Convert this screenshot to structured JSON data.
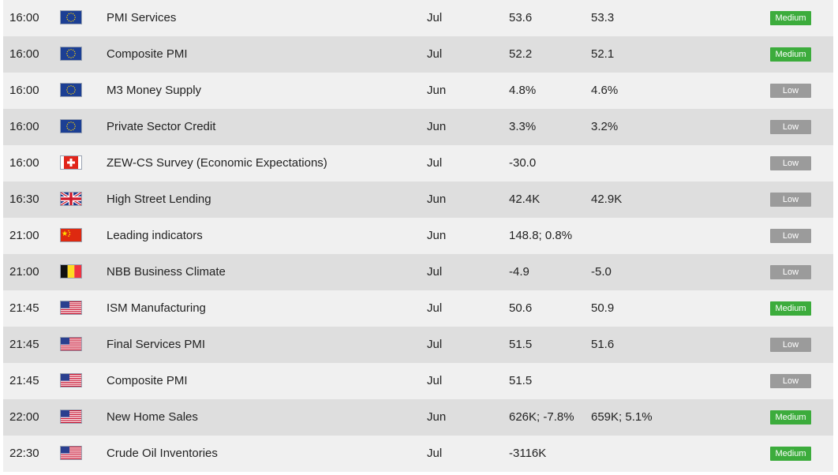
{
  "colors": {
    "row_odd": "#f0f0f0",
    "row_even": "#dedede",
    "medium": "#3cac3c",
    "low": "#9b9b9b"
  },
  "events": [
    {
      "time": "16:00",
      "flag": "eu-flag-icon",
      "event": "PMI Services",
      "period": "Jul",
      "actual": "53.6",
      "previous": "53.3",
      "importance": "Medium"
    },
    {
      "time": "16:00",
      "flag": "eu-flag-icon",
      "event": "Composite PMI",
      "period": "Jul",
      "actual": "52.2",
      "previous": "52.1",
      "importance": "Medium"
    },
    {
      "time": "16:00",
      "flag": "eu-flag-icon",
      "event": "M3 Money Supply",
      "period": "Jun",
      "actual": "4.8%",
      "previous": "4.6%",
      "importance": "Low"
    },
    {
      "time": "16:00",
      "flag": "eu-flag-icon",
      "event": "Private Sector Credit",
      "period": "Jun",
      "actual": "3.3%",
      "previous": "3.2%",
      "importance": "Low"
    },
    {
      "time": "16:00",
      "flag": "ch-flag-icon",
      "event": "ZEW-CS Survey (Economic Expectations)",
      "period": "Jul",
      "actual": "-30.0",
      "previous": "",
      "importance": "Low"
    },
    {
      "time": "16:30",
      "flag": "uk-flag-icon",
      "event": "High Street Lending",
      "period": "Jun",
      "actual": "42.4K",
      "previous": "42.9K",
      "importance": "Low"
    },
    {
      "time": "21:00",
      "flag": "cn-flag-icon",
      "event": "Leading indicators",
      "period": "Jun",
      "actual": "148.8; 0.8%",
      "previous": "",
      "importance": "Low"
    },
    {
      "time": "21:00",
      "flag": "be-flag-icon",
      "event": "NBB Business Climate",
      "period": "Jul",
      "actual": "-4.9",
      "previous": "-5.0",
      "importance": "Low"
    },
    {
      "time": "21:45",
      "flag": "us-flag-icon",
      "event": "ISM Manufacturing",
      "period": "Jul",
      "actual": "50.6",
      "previous": "50.9",
      "importance": "Medium"
    },
    {
      "time": "21:45",
      "flag": "us-flag-icon",
      "event": "Final Services PMI",
      "period": "Jul",
      "actual": "51.5",
      "previous": "51.6",
      "importance": "Low"
    },
    {
      "time": "21:45",
      "flag": "us-flag-icon",
      "event": "Composite PMI",
      "period": "Jul",
      "actual": "51.5",
      "previous": "",
      "importance": "Low"
    },
    {
      "time": "22:00",
      "flag": "us-flag-icon",
      "event": "New Home Sales",
      "period": "Jun",
      "actual": "626K; -7.8%",
      "previous": "659K; 5.1%",
      "importance": "Medium"
    },
    {
      "time": "22:30",
      "flag": "us-flag-icon",
      "event": "Crude Oil Inventories",
      "period": "Jul",
      "actual": "-3116K",
      "previous": "",
      "importance": "Medium"
    }
  ]
}
